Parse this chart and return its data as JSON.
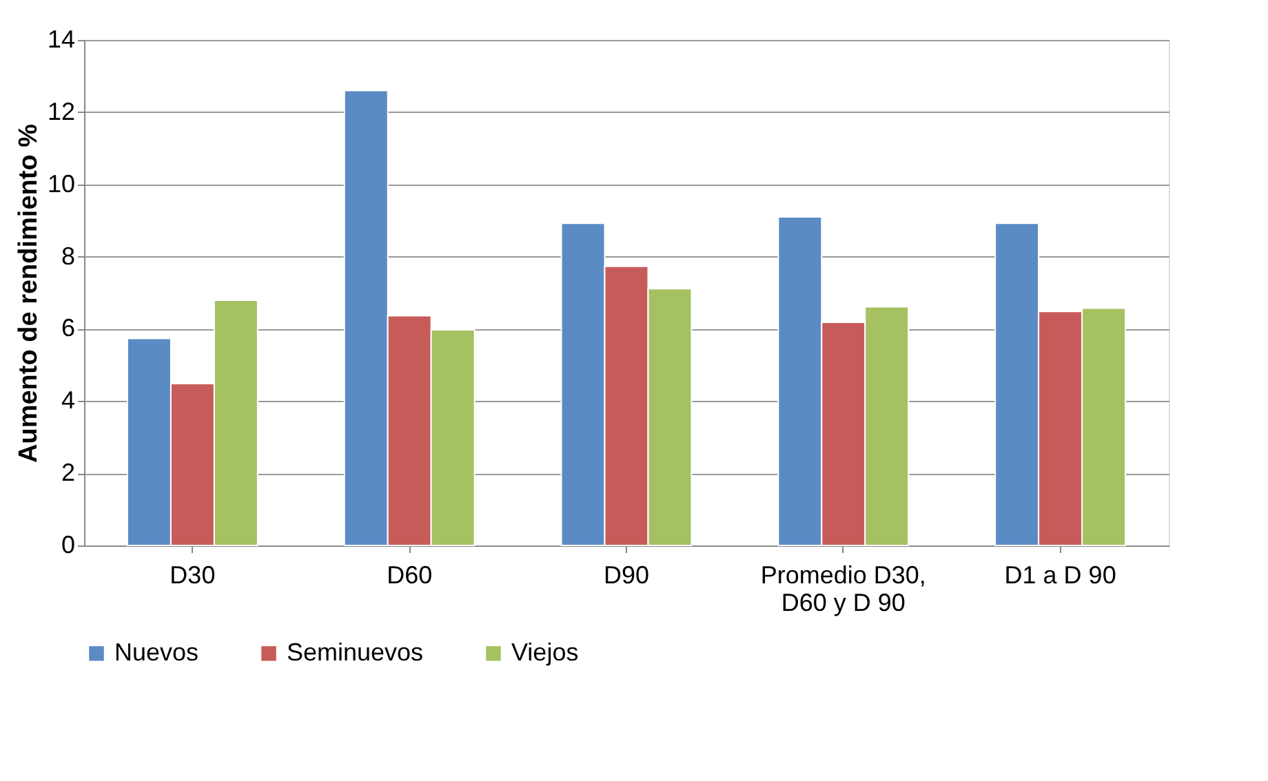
{
  "chart_data": {
    "type": "bar",
    "ylabel": "Aumento de rendimiento    %",
    "categories": [
      "D30",
      "D60",
      "D90",
      "Promedio D30, D60 y D 90",
      "D1 a D 90"
    ],
    "series": [
      {
        "name": "Nuevos",
        "color": "#5b8bc4",
        "values": [
          5.73,
          12.6,
          8.92,
          9.1,
          8.92
        ]
      },
      {
        "name": "Seminuevos",
        "color": "#c75b59",
        "values": [
          4.48,
          6.36,
          7.73,
          6.18,
          6.48
        ]
      },
      {
        "name": "Viejos",
        "color": "#a5c162",
        "values": [
          6.79,
          5.97,
          7.11,
          6.61,
          6.57
        ]
      }
    ],
    "ylim": [
      0,
      14
    ],
    "yticks": [
      0,
      2,
      4,
      6,
      8,
      10,
      12,
      14
    ],
    "grid": "y",
    "legend": "bottom"
  }
}
